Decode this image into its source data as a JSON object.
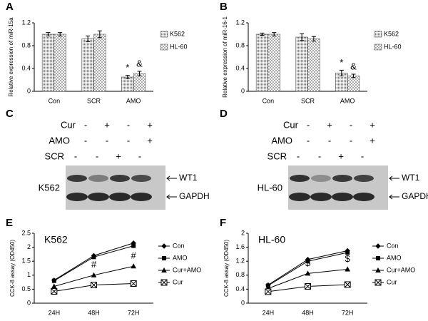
{
  "chart_data": [
    {
      "type": "bar",
      "letter": "A",
      "ylabel": "Relative expression of miR-15a",
      "categories": [
        "Con",
        "SCR",
        "AMO"
      ],
      "series": [
        {
          "name": "K562",
          "color": "#777777",
          "values": [
            1.0,
            0.92,
            0.25
          ],
          "errors": [
            0.03,
            0.05,
            0.03
          ]
        },
        {
          "name": "HL-60",
          "color": "#aaaaaa",
          "values": [
            1.0,
            1.0,
            0.31
          ],
          "errors": [
            0.03,
            0.06,
            0.04
          ]
        }
      ],
      "ylim": [
        0,
        1.2
      ],
      "yticks": [
        0,
        0.4,
        0.8,
        1.2
      ],
      "grid": false,
      "annotations": [
        "*",
        "&"
      ]
    },
    {
      "type": "bar",
      "letter": "B",
      "ylabel": "Relative expression of miR-16-1",
      "categories": [
        "Con",
        "SCR",
        "AMO"
      ],
      "series": [
        {
          "name": "K562",
          "color": "#777777",
          "values": [
            1.0,
            0.95,
            0.32
          ],
          "errors": [
            0.02,
            0.06,
            0.05
          ]
        },
        {
          "name": "HL-60",
          "color": "#aaaaaa",
          "values": [
            1.0,
            0.92,
            0.27
          ],
          "errors": [
            0.03,
            0.04,
            0.03
          ]
        }
      ],
      "ylim": [
        0,
        1.2
      ],
      "yticks": [
        0,
        0.4,
        0.8,
        1.2
      ],
      "grid": false,
      "annotations": [
        "*",
        "&"
      ]
    },
    {
      "type": "line",
      "letter": "E",
      "label": "K562",
      "ylabel": "CCK-8 assay (OD450)",
      "categories": [
        "24H",
        "48H",
        "72H"
      ],
      "series": [
        {
          "name": "Con",
          "color": "#000000",
          "marker": "diamond",
          "values": [
            0.82,
            1.7,
            2.15
          ]
        },
        {
          "name": "AMO",
          "color": "#000000",
          "marker": "square",
          "values": [
            0.8,
            1.65,
            2.05
          ]
        },
        {
          "name": "Cur+AMO",
          "color": "#000000",
          "marker": "triangle",
          "values": [
            0.6,
            1.0,
            1.32
          ]
        },
        {
          "name": "Cur",
          "color": "#000000",
          "marker": "x-box",
          "values": [
            0.42,
            0.65,
            0.7
          ]
        }
      ],
      "ylim": [
        0,
        2.5
      ],
      "yticks": [
        0,
        0.5,
        1,
        1.5,
        2,
        2.5
      ],
      "grid": false,
      "annotations": [
        "#",
        "#"
      ]
    },
    {
      "type": "line",
      "letter": "F",
      "label": "HL-60",
      "ylabel": "CCK-8 assay (OD450)",
      "categories": [
        "24H",
        "48H",
        "72H"
      ],
      "series": [
        {
          "name": "Con",
          "color": "#000000",
          "marker": "diamond",
          "values": [
            0.52,
            1.25,
            1.5
          ]
        },
        {
          "name": "AMO",
          "color": "#000000",
          "marker": "square",
          "values": [
            0.5,
            1.2,
            1.45
          ]
        },
        {
          "name": "Cur+AMO",
          "color": "#000000",
          "marker": "triangle",
          "values": [
            0.42,
            0.85,
            0.97
          ]
        },
        {
          "name": "Cur",
          "color": "#000000",
          "marker": "x-box",
          "values": [
            0.33,
            0.48,
            0.53
          ]
        }
      ],
      "ylim": [
        0,
        2
      ],
      "yticks": [
        0,
        0.4,
        0.8,
        1.2,
        1.6,
        2
      ],
      "grid": false,
      "annotations": [
        "$",
        "$"
      ]
    }
  ],
  "blots": [
    {
      "letter": "C",
      "cell": "K562",
      "rows": [
        {
          "label": "Cur",
          "signs": [
            "-",
            "+",
            "-",
            "+"
          ]
        },
        {
          "label": "AMO",
          "signs": [
            "-",
            "-",
            "-",
            "+"
          ]
        },
        {
          "label": "SCR",
          "signs": [
            "-",
            "-",
            "+",
            "-"
          ]
        }
      ],
      "bands": [
        "WT1",
        "GAPDH"
      ]
    },
    {
      "letter": "D",
      "cell": "HL-60",
      "rows": [
        {
          "label": "Cur",
          "signs": [
            "-",
            "+",
            "-",
            "+"
          ]
        },
        {
          "label": "AMO",
          "signs": [
            "-",
            "-",
            "-",
            "+"
          ]
        },
        {
          "label": "SCR",
          "signs": [
            "-",
            "-",
            "+",
            "-"
          ]
        }
      ],
      "bands": [
        "WT1",
        "GAPDH"
      ]
    }
  ]
}
